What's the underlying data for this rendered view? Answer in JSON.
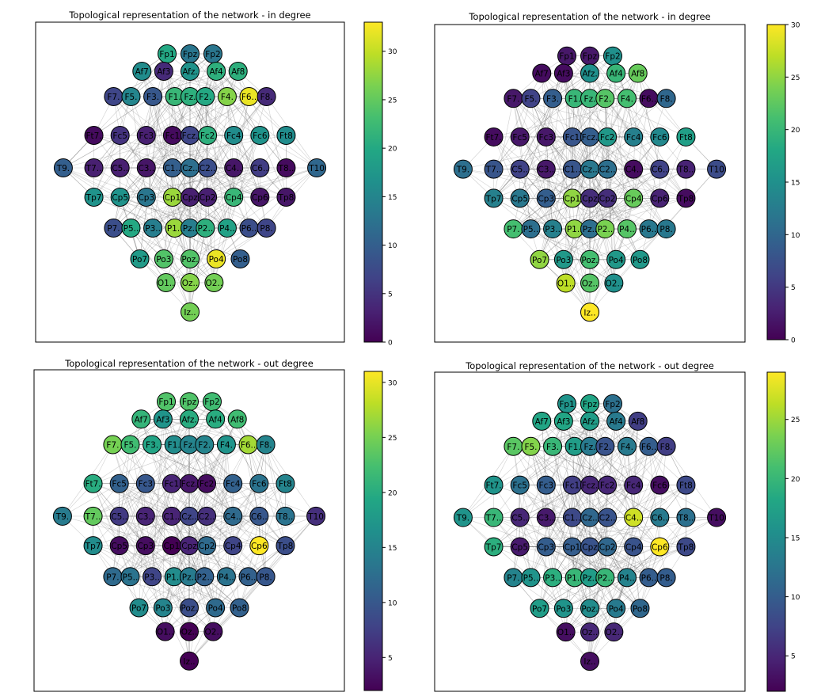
{
  "panels": [
    {
      "title": "Topological representation of the network - in degree",
      "colorbar": {
        "min": 0,
        "max": 33,
        "ticks": [
          0,
          5,
          10,
          15,
          20,
          25,
          30
        ]
      },
      "values": {
        "Fp1": 20,
        "Fpz": 13,
        "Fp2": 13,
        "Af7": 16,
        "Af3": 4,
        "Afz": 17,
        "Af4": 21,
        "Af8": 21,
        "F7": 7,
        "F5": 15,
        "F3": 9,
        "F1": 22,
        "Fz": 21,
        "F2": 20,
        "F4": 27,
        "F6": 32,
        "F8": 4,
        "Ft7": 1,
        "Fc5": 5,
        "Fc3": 3,
        "Fc1": 1,
        "Fcz": 7,
        "Fc2": 21,
        "Fc4": 16,
        "Fc6": 17,
        "Ft8": 16,
        "T9": 10,
        "T7": 3,
        "C5": 3,
        "C3": 2,
        "C1": 10,
        "Cz": 12,
        "C2": 8,
        "C4": 2,
        "C6": 6,
        "T8": 1,
        "T10": 11,
        "Tp7": 17,
        "Cp5": 17,
        "Cp3": 13,
        "Cp1": 28,
        "Cpz": 3,
        "Cp2": 3,
        "Cp4": 22,
        "Cp6": 2,
        "Tp8": 2,
        "P7": 8,
        "P5": 20,
        "P3": 14,
        "P1": 28,
        "Pz": 14,
        "P2": 21,
        "P4": 19,
        "P6": 8,
        "P8": 7,
        "Po7": 18,
        "Po3": 24,
        "Poz": 24,
        "Po4": 32,
        "Po8": 10,
        "O1": 25,
        "Oz": 27,
        "O2": 26,
        "Iz": 26
      }
    },
    {
      "title": "Topological representation of the network - in degree",
      "colorbar": {
        "min": 0,
        "max": 30,
        "ticks": [
          0,
          5,
          10,
          15,
          20,
          25,
          30
        ]
      },
      "values": {
        "Fp1": 2,
        "Fpz": 2,
        "Fp2": 15,
        "Af7": 1,
        "Af3": 1,
        "Afz": 15,
        "Af4": 20,
        "Af8": 23,
        "F7": 2,
        "F5": 6,
        "F3": 9,
        "F1": 20,
        "Fz": 20,
        "F2": 22,
        "F4": 21,
        "F6": 1,
        "F8": 10,
        "Ft7": 1,
        "Fc5": 2,
        "Fc3": 2,
        "Fc1": 8,
        "Fcz": 9,
        "Fc2": 16,
        "Fc4": 13,
        "Fc6": 14,
        "Ft8": 17,
        "T9": 11,
        "T7": 8,
        "C5": 6,
        "C3": 2,
        "C1": 8,
        "Cz": 12,
        "C2": 11,
        "C4": 1,
        "C6": 6,
        "T8": 3,
        "T10": 7,
        "Tp7": 13,
        "Cp5": 12,
        "Cp3": 9,
        "Cp1": 25,
        "Cpz": 4,
        "Cp2": 4,
        "Cp4": 23,
        "Cp6": 3,
        "Tp8": 1,
        "P7": 21,
        "P5": 11,
        "P3": 13,
        "P1": 25,
        "Pz": 11,
        "P2": 24,
        "P4": 22,
        "P6": 12,
        "P8": 12,
        "Po7": 25,
        "Po3": 16,
        "Poz": 21,
        "Po4": 16,
        "Po8": 16,
        "O1": 27,
        "Oz": 22,
        "O2": 15,
        "Iz": 30
      }
    },
    {
      "title": "Topological representation of the network - out degree",
      "colorbar": {
        "min": 2,
        "max": 31,
        "ticks": [
          5,
          10,
          15,
          20,
          25,
          30
        ]
      },
      "values": {
        "Fp1": 23,
        "Fpz": 23,
        "Fp2": 22,
        "Af7": 21,
        "Af3": 17,
        "Afz": 20,
        "Af4": 20,
        "Af8": 22,
        "F7": 25,
        "F5": 22,
        "F3": 19,
        "F1": 16,
        "Fz": 15,
        "F2": 15,
        "F4": 17,
        "F6": 27,
        "F8": 15,
        "Ft7": 20,
        "Fc5": 11,
        "Fc3": 10,
        "Fc1": 5,
        "Fcz": 4,
        "Fc2": 3,
        "Fc4": 11,
        "Fc6": 13,
        "Ft8": 15,
        "T9": 14,
        "T7": 24,
        "C5": 7,
        "C3": 5,
        "C1": 5,
        "Cz": 8,
        "C2": 6,
        "C4": 12,
        "C6": 10,
        "T8": 13,
        "T10": 6,
        "Tp7": 16,
        "Cp5": 3,
        "Cp3": 3,
        "Cp1": 2,
        "Cpz": 5,
        "Cp2": 12,
        "Cp4": 8,
        "Cp6": 31,
        "Tp8": 9,
        "P7": 12,
        "P5": 13,
        "P3": 8,
        "P1": 16,
        "Pz": 14,
        "P2": 11,
        "P4": 13,
        "P6": 11,
        "P8": 10,
        "Po7": 16,
        "Po3": 15,
        "Poz": 9,
        "Po4": 12,
        "Po8": 11,
        "O1": 3,
        "Oz": 2,
        "O2": 3,
        "Iz": 2
      }
    },
    {
      "title": "Topological representation of the network - out degree",
      "colorbar": {
        "min": 2,
        "max": 29,
        "ticks": [
          5,
          10,
          15,
          20,
          25
        ]
      },
      "values": {
        "Fp1": 16,
        "Fpz": 18,
        "Fp2": 12,
        "Af7": 18,
        "Af3": 18,
        "Afz": 17,
        "Af4": 13,
        "Af8": 7,
        "F7": 22,
        "F5": 24,
        "F3": 20,
        "F1": 17,
        "Fz": 13,
        "F2": 9,
        "F4": 13,
        "F6": 10,
        "F8": 7,
        "Ft7": 16,
        "Fc5": 12,
        "Fc3": 10,
        "Fc1": 7,
        "Fcz": 5,
        "Fc2": 5,
        "Fc4": 5,
        "Fc6": 3,
        "Ft8": 8,
        "T9": 16,
        "T7": 20,
        "C5": 5,
        "C3": 4,
        "C1": 8,
        "Cz": 11,
        "C2": 9,
        "C4": 27,
        "C6": 13,
        "T8": 12,
        "T10": 3,
        "Tp7": 19,
        "Cp5": 4,
        "Cp3": 10,
        "Cp1": 10,
        "Cpz": 9,
        "Cp2": 11,
        "Cp4": 9,
        "Cp6": 29,
        "Tp8": 8,
        "P7": 14,
        "P5": 16,
        "P3": 19,
        "P1": 20,
        "Pz": 17,
        "P2": 20,
        "P4": 14,
        "P6": 10,
        "P8": 10,
        "Po7": 17,
        "Po3": 16,
        "Poz": 15,
        "Po4": 13,
        "Po8": 11,
        "O1": 3,
        "Oz": 5,
        "O2": 5,
        "Iz": 3
      }
    }
  ],
  "node_labels": {
    "Fp1": "Fp1",
    "Fpz": "Fpz",
    "Fp2": "Fp2",
    "Af7": "Af7",
    "Af3": "Af3",
    "Afz": "Afz.",
    "Af4": "Af4",
    "Af8": "Af8",
    "F7": "F7.",
    "F5": "F5.",
    "F3": "F3.",
    "F1": "F1.",
    "Fz": "Fz.",
    "F2": "F2.",
    "F4": "F4.",
    "F6": "F6..",
    "F8": "F8.",
    "Ft7": "Ft7.",
    "Fc5": "Fc5",
    "Fc3": "Fc3",
    "Fc1": "Fc1",
    "Fcz": "Fcz.",
    "Fc2": "Fc2",
    "Fc4": "Fc4",
    "Fc6": "Fc6",
    "Ft8": "Ft8",
    "T9": "T9.",
    "T7": "T7..",
    "C5": "C5..",
    "C3": "C3..",
    "C1": "C1..",
    "Cz": "Cz..",
    "C2": "C2..",
    "C4": "C4..",
    "C6": "C6..",
    "T8": "T8..",
    "T10": "T10",
    "Tp7": "Tp7",
    "Cp5": "Cp5",
    "Cp3": "Cp3",
    "Cp1": "Cp1",
    "Cpz": "Cpz",
    "Cp2": "Cp2",
    "Cp4": "Cp4",
    "Cp6": "Cp6",
    "Tp8": "Tp8",
    "P7": "P7.",
    "P5": "P5..",
    "P3": "P3..",
    "P1": "P1..",
    "Pz": "Pz..",
    "P2": "P2..",
    "P4": "P4..",
    "P6": "P6..",
    "P8": "P8.",
    "Po7": "Po7",
    "Po3": "Po3",
    "Poz": "Poz.",
    "Po4": "Po4",
    "Po8": "Po8",
    "O1": "O1..",
    "Oz": "Oz..",
    "O2": "O2..",
    "Iz": "Iz.."
  },
  "colormap": "viridis"
}
